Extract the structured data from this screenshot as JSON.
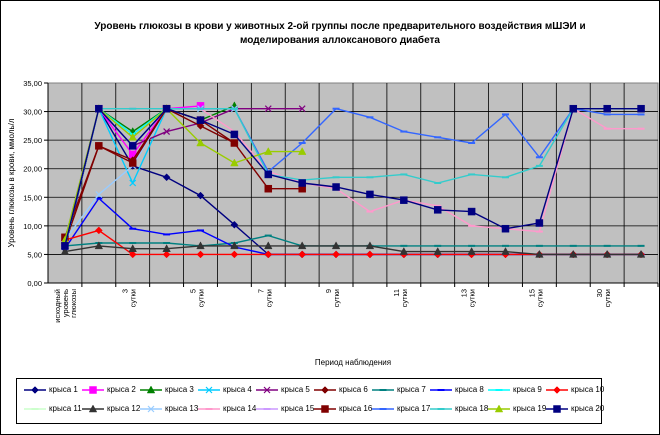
{
  "chart_data": {
    "type": "line",
    "title": "Уровень глюкозы в крови у животных 2-ой группы после предварительного воздействия мШЭИ и моделирования аллоксанового диабета",
    "xlabel": "Период наблюдения",
    "ylabel": "Уровень глюкозы в крови, ммоль/л",
    "ylim": [
      0,
      35
    ],
    "yticks": [
      "0,00",
      "5,00",
      "10,00",
      "15,00",
      "20,00",
      "25,00",
      "30,00",
      "35,00"
    ],
    "grid": true,
    "legend_position": "bottom",
    "categories": [
      "исходный уровень глюкозы",
      "",
      "3 сутки",
      "",
      "5 сутки",
      "",
      "7 сутки",
      "",
      "9 сутки",
      "",
      "11 сутки",
      "",
      "13 сутки",
      "",
      "15 сутки",
      "",
      "30 сутки",
      ""
    ],
    "series": [
      {
        "name": "крыса 1",
        "color": "#000080",
        "marker": "diamond",
        "values": [
          6.0,
          30.5,
          20.5,
          18.5,
          15.3,
          10.2,
          5.0,
          5.0,
          5.0,
          5.0,
          5.0,
          5.0,
          5.0,
          5.0,
          5.0,
          5.0,
          5.0,
          5.0
        ]
      },
      {
        "name": "крыса 2",
        "color": "#ff00ff",
        "marker": "square",
        "values": [
          7.0,
          30.5,
          22.5,
          30.5,
          31.0,
          null,
          null,
          null,
          null,
          null,
          null,
          null,
          null,
          null,
          null,
          null,
          null,
          null
        ]
      },
      {
        "name": "крыса 3",
        "color": "#008000",
        "marker": "triangle",
        "values": [
          7.5,
          30.5,
          26.5,
          30.5,
          28.5,
          31.0,
          null,
          null,
          null,
          null,
          null,
          null,
          null,
          null,
          null,
          null,
          null,
          null
        ]
      },
      {
        "name": "крыса 4",
        "color": "#00ccff",
        "marker": "x",
        "values": [
          7.5,
          30.5,
          17.5,
          30.5,
          30.5,
          30.5,
          null,
          null,
          null,
          null,
          null,
          null,
          null,
          null,
          null,
          null,
          null,
          null
        ]
      },
      {
        "name": "крыса 5",
        "color": "#800080",
        "marker": "x",
        "values": [
          7.5,
          30.5,
          24.0,
          26.5,
          28.0,
          30.5,
          30.5,
          30.5,
          null,
          null,
          null,
          null,
          null,
          null,
          null,
          null,
          null,
          null
        ]
      },
      {
        "name": "крыса 6",
        "color": "#800000",
        "marker": "diamond",
        "values": [
          7.0,
          24.0,
          21.5,
          30.5,
          27.5,
          24.5,
          null,
          null,
          null,
          null,
          null,
          null,
          null,
          null,
          null,
          null,
          null,
          null
        ]
      },
      {
        "name": "крыса 7",
        "color": "#008080",
        "marker": "dash",
        "values": [
          6.5,
          7.0,
          7.0,
          7.0,
          6.5,
          7.0,
          8.3,
          6.5,
          6.5,
          6.5,
          6.5,
          6.5,
          6.5,
          6.5,
          6.5,
          6.5,
          6.5,
          6.5
        ]
      },
      {
        "name": "крыса 8",
        "color": "#0000ff",
        "marker": "dash",
        "values": [
          6.0,
          14.8,
          9.5,
          8.5,
          9.2,
          6.3,
          5.0,
          5.0,
          5.0,
          5.0,
          5.0,
          5.0,
          5.0,
          5.0,
          5.0,
          5.0,
          5.0,
          5.0
        ]
      },
      {
        "name": "крыса 9",
        "color": "#00ffff",
        "marker": "dash",
        "values": [
          6.5,
          30.5,
          26.0,
          30.5,
          30.5,
          30.5,
          null,
          null,
          null,
          null,
          null,
          null,
          null,
          null,
          null,
          null,
          null,
          null
        ]
      },
      {
        "name": "крыса 10",
        "color": "#ff0000",
        "marker": "diamond",
        "values": [
          7.5,
          9.2,
          5.0,
          5.0,
          5.0,
          5.0,
          5.0,
          5.0,
          5.0,
          5.0,
          5.0,
          5.0,
          5.0,
          5.0,
          5.0,
          5.0,
          5.0,
          5.0
        ]
      },
      {
        "name": "крыса 11",
        "color": "#ccffcc",
        "marker": "dash",
        "values": [
          7.5,
          30.5,
          24.0,
          30.5,
          30.5,
          30.5,
          null,
          null,
          null,
          null,
          null,
          null,
          null,
          null,
          null,
          null,
          null,
          null
        ]
      },
      {
        "name": "крыса 12",
        "color": "#333333",
        "marker": "triangle",
        "values": [
          5.5,
          6.5,
          6.0,
          6.0,
          6.5,
          6.5,
          6.5,
          6.5,
          6.5,
          6.5,
          5.5,
          5.5,
          5.5,
          5.5,
          5.0,
          5.0,
          5.0,
          5.0
        ]
      },
      {
        "name": "крыса 13",
        "color": "#99ccff",
        "marker": "x",
        "values": [
          7.5,
          15.5,
          20.5,
          30.5,
          30.5,
          30.5,
          null,
          null,
          null,
          null,
          null,
          null,
          null,
          null,
          null,
          null,
          null,
          null
        ]
      },
      {
        "name": "крыса 14",
        "color": "#ff99cc",
        "marker": "dash",
        "values": [
          6.5,
          30.5,
          30.5,
          30.5,
          30.5,
          26.5,
          19.5,
          17.5,
          16.5,
          12.5,
          14.5,
          13.5,
          10.0,
          9.5,
          9.0,
          30.5,
          27.0,
          27.0
        ]
      },
      {
        "name": "крыса 15",
        "color": "#cc99ff",
        "marker": "dash",
        "values": [
          7.5,
          30.5,
          25.5,
          30.5,
          30.5,
          30.5,
          null,
          null,
          null,
          null,
          null,
          null,
          null,
          null,
          null,
          null,
          null,
          null
        ]
      },
      {
        "name": "крыса 16",
        "color": "#800000",
        "marker": "square",
        "values": [
          8.0,
          24.0,
          21.0,
          30.5,
          28.5,
          24.5,
          16.5,
          16.5,
          null,
          null,
          null,
          null,
          null,
          null,
          null,
          null,
          null,
          null
        ]
      },
      {
        "name": "крыса 17",
        "color": "#3366ff",
        "marker": "dash",
        "values": [
          6.5,
          30.5,
          24.0,
          30.5,
          30.5,
          30.5,
          19.5,
          24.5,
          30.5,
          29.0,
          26.5,
          25.5,
          24.5,
          29.5,
          22.0,
          30.5,
          29.5,
          29.5
        ]
      },
      {
        "name": "крыса 18",
        "color": "#33cccc",
        "marker": "dash",
        "values": [
          6.5,
          30.5,
          30.5,
          30.5,
          30.5,
          30.5,
          19.0,
          18.0,
          18.5,
          18.5,
          19.0,
          17.5,
          19.0,
          18.5,
          20.5,
          30.5,
          30.5,
          30.5
        ]
      },
      {
        "name": "крыса 19",
        "color": "#99cc00",
        "marker": "triangle",
        "values": [
          7.5,
          30.5,
          25.5,
          30.5,
          24.5,
          21.0,
          23.0,
          23.0,
          null,
          null,
          null,
          null,
          null,
          null,
          null,
          null,
          null,
          null
        ]
      },
      {
        "name": "крыса 20",
        "color": "#000080",
        "marker": "square",
        "values": [
          6.5,
          30.5,
          24.0,
          30.5,
          28.5,
          26.0,
          19.0,
          17.5,
          16.8,
          15.5,
          14.5,
          12.8,
          12.5,
          9.5,
          10.5,
          30.5,
          30.5,
          30.5
        ]
      }
    ]
  }
}
